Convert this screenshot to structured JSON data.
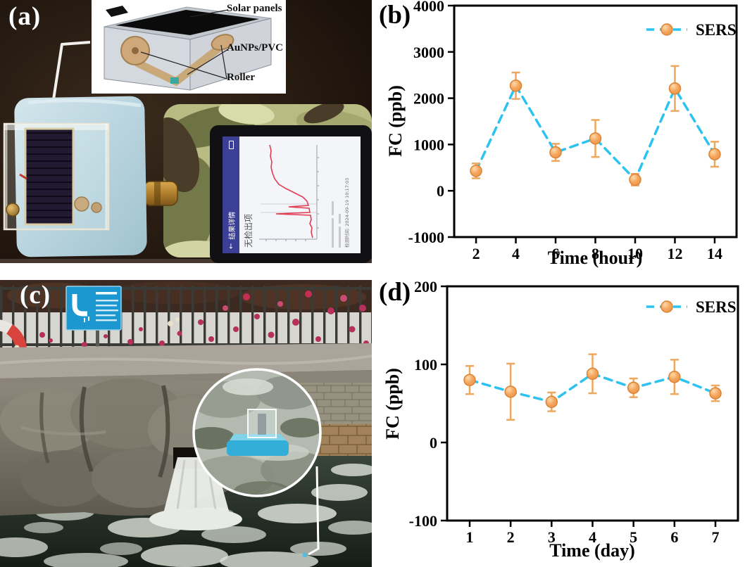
{
  "panels": {
    "a": {
      "label": "(a)",
      "inset": {
        "labels": [
          "Solar panels",
          "AuNPs/PVC",
          "Roller"
        ]
      },
      "phone": {
        "nav_title": "结果详情",
        "status_text": "无检出项",
        "timestamp": "检测时间: 2024-09-19 10:17:03"
      }
    },
    "b": {
      "label": "(b)"
    },
    "c": {
      "label": "(c)"
    },
    "d": {
      "label": "(d)"
    }
  },
  "chart_data": [
    {
      "id": "b",
      "type": "line",
      "title": "",
      "xlabel": "Time (hour)",
      "ylabel": "FC (ppb)",
      "legend": "SERS",
      "legend_position": "top-right",
      "grid": false,
      "x": [
        2,
        4,
        6,
        8,
        10,
        12,
        14
      ],
      "y": [
        430,
        2270,
        830,
        1130,
        240,
        2210,
        790
      ],
      "yerr": [
        160,
        285,
        185,
        400,
        125,
        485,
        270
      ],
      "xticks": [
        2,
        4,
        6,
        8,
        10,
        12,
        14
      ],
      "yticks": [
        -1000,
        0,
        1000,
        2000,
        3000,
        4000
      ],
      "xlim": [
        0.9,
        15.1
      ],
      "ylim": [
        -1000,
        4000
      ]
    },
    {
      "id": "d",
      "type": "line",
      "title": "",
      "xlabel": "Time (day)",
      "ylabel": "FC (ppb)",
      "legend": "SERS",
      "legend_position": "top-right",
      "grid": false,
      "x": [
        1,
        2,
        3,
        4,
        5,
        6,
        7
      ],
      "y": [
        80,
        65,
        52,
        88,
        70,
        84,
        63
      ],
      "yerr": [
        18,
        36,
        12,
        25,
        12,
        22,
        10
      ],
      "xticks": [
        1,
        2,
        3,
        4,
        5,
        6,
        7
      ],
      "yticks": [
        -100,
        0,
        100,
        200
      ],
      "xlim": [
        0.45,
        7.55
      ],
      "ylim": [
        -100,
        200
      ]
    }
  ],
  "colors": {
    "series_line": "#2cc3f0",
    "marker_fill": "#f4a55c",
    "marker_edge": "#da8438",
    "error_bar": "#eda85f",
    "axis": "#000000",
    "float_blue": "#3fb4dc",
    "foam_device_blue": "#b7d3dd",
    "sign_blue": "#1d97cf",
    "spectrum_red": "#e23b52"
  }
}
